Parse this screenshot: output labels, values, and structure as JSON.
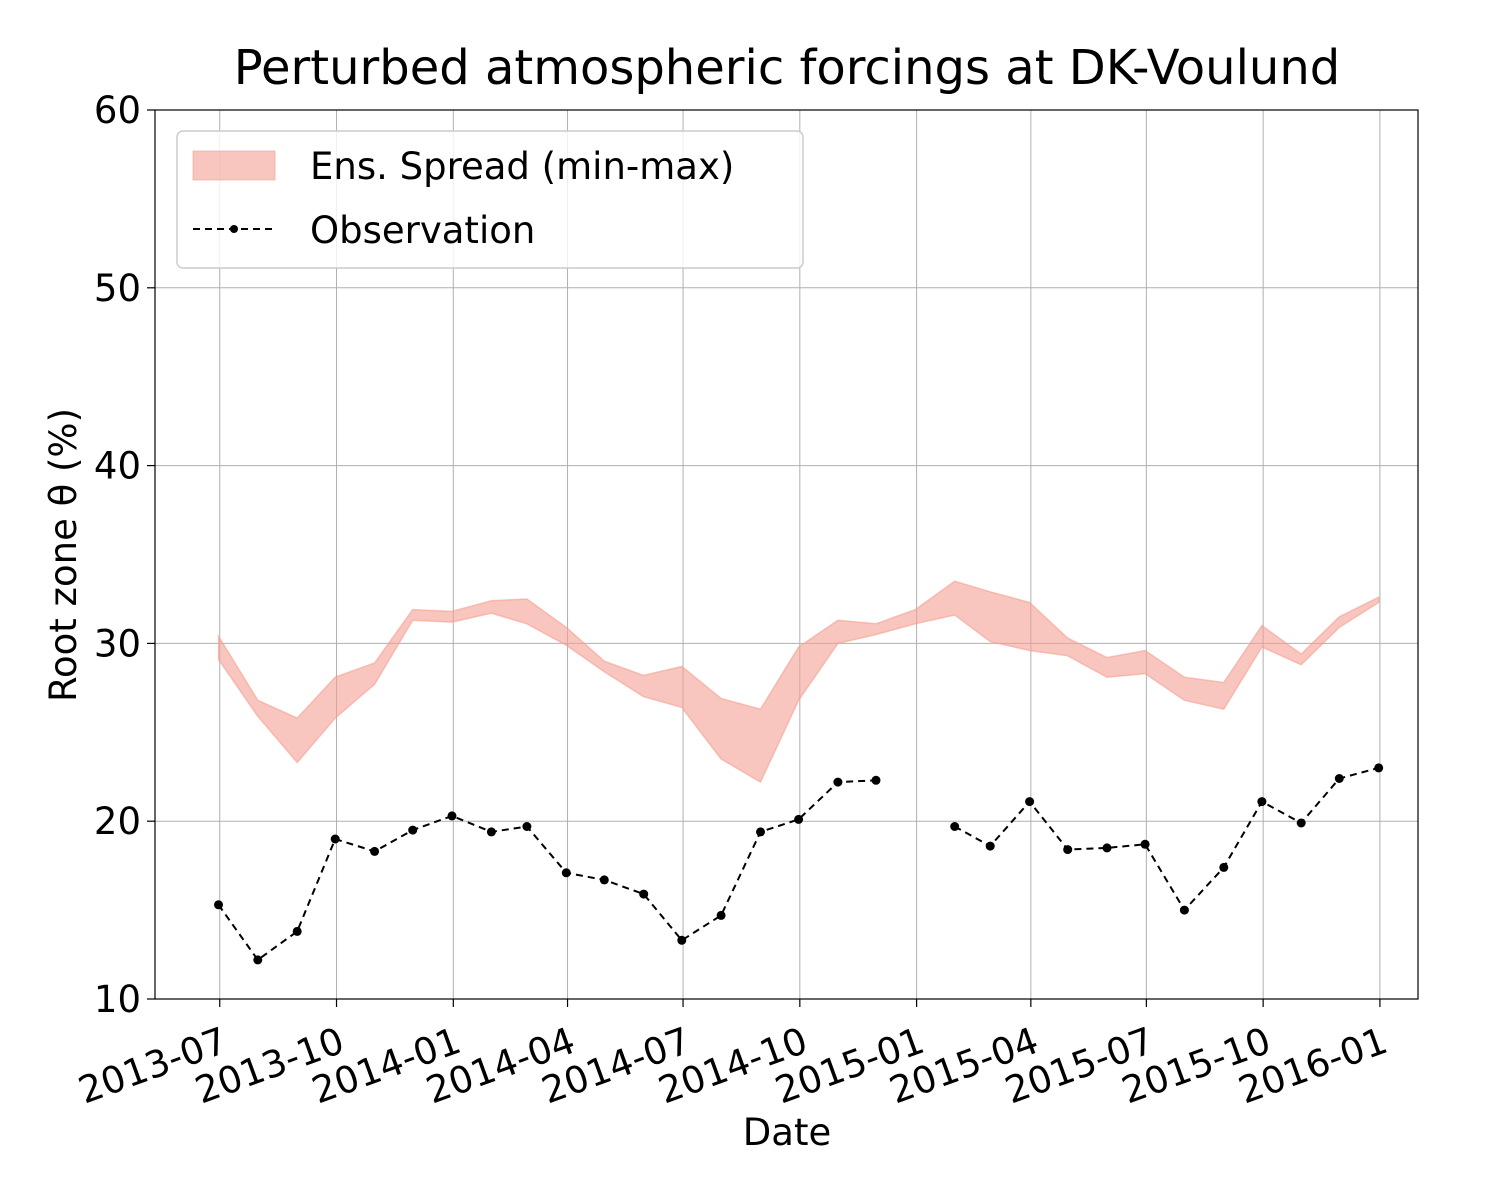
{
  "chart_data": {
    "type": "line",
    "title": "Perturbed atmospheric forcings at DK-Voulund",
    "xlabel": "Date",
    "ylabel": "Root zone θ  (%)",
    "ylim": [
      10,
      60
    ],
    "yticks": [
      10,
      20,
      30,
      40,
      50,
      60
    ],
    "xticks": [
      "2013-07",
      "2013-10",
      "2014-01",
      "2014-04",
      "2014-07",
      "2014-10",
      "2015-01",
      "2015-04",
      "2015-07",
      "2015-10",
      "2016-01"
    ],
    "xlim": [
      "2013-05-11",
      "2016-01-31"
    ],
    "grid": true,
    "legend_position": "top-left",
    "colors": {
      "spread": "#f4a093",
      "observation": "#000000"
    },
    "series": [
      {
        "name": "Ens. Spread (min-max)",
        "kind": "band",
        "points": [
          {
            "date": "2013-06-30",
            "min": 29.1,
            "max": 30.4
          },
          {
            "date": "2013-07-31",
            "min": 25.9,
            "max": 26.8
          },
          {
            "date": "2013-08-31",
            "min": 23.3,
            "max": 25.8
          },
          {
            "date": "2013-09-30",
            "min": 25.8,
            "max": 28.1
          },
          {
            "date": "2013-10-31",
            "min": 27.7,
            "max": 28.9
          },
          {
            "date": "2013-11-30",
            "min": 31.3,
            "max": 31.9
          },
          {
            "date": "2013-12-31",
            "min": 31.2,
            "max": 31.8
          },
          {
            "date": "2014-01-31",
            "min": 31.7,
            "max": 32.4
          },
          {
            "date": "2014-02-28",
            "min": 31.1,
            "max": 32.5
          },
          {
            "date": "2014-03-31",
            "min": 29.9,
            "max": 30.9
          },
          {
            "date": "2014-04-30",
            "min": 28.4,
            "max": 29.0
          },
          {
            "date": "2014-05-31",
            "min": 27.0,
            "max": 28.2
          },
          {
            "date": "2014-06-30",
            "min": 26.4,
            "max": 28.7
          },
          {
            "date": "2014-07-31",
            "min": 23.5,
            "max": 26.9
          },
          {
            "date": "2014-08-31",
            "min": 22.2,
            "max": 26.3
          },
          {
            "date": "2014-09-30",
            "min": 26.8,
            "max": 29.8
          },
          {
            "date": "2014-10-31",
            "min": 30.0,
            "max": 31.3
          },
          {
            "date": "2014-11-30",
            "min": 30.5,
            "max": 31.1
          },
          {
            "date": "2014-12-31",
            "min": 31.1,
            "max": 31.9
          },
          {
            "date": "2015-01-31",
            "min": 31.6,
            "max": 33.5
          },
          {
            "date": "2015-02-28",
            "min": 30.1,
            "max": 32.9
          },
          {
            "date": "2015-03-31",
            "min": 29.6,
            "max": 32.3
          },
          {
            "date": "2015-04-30",
            "min": 29.3,
            "max": 30.3
          },
          {
            "date": "2015-05-31",
            "min": 28.1,
            "max": 29.2
          },
          {
            "date": "2015-06-30",
            "min": 28.3,
            "max": 29.6
          },
          {
            "date": "2015-07-31",
            "min": 26.8,
            "max": 28.1
          },
          {
            "date": "2015-08-31",
            "min": 26.3,
            "max": 27.8
          },
          {
            "date": "2015-09-30",
            "min": 29.8,
            "max": 31.0
          },
          {
            "date": "2015-10-31",
            "min": 28.8,
            "max": 29.4
          },
          {
            "date": "2015-11-30",
            "min": 30.9,
            "max": 31.5
          },
          {
            "date": "2015-12-31",
            "min": 32.3,
            "max": 32.6
          }
        ]
      },
      {
        "name": "Observation",
        "kind": "line",
        "style": "dashed-markers",
        "points": [
          {
            "date": "2013-06-30",
            "y": 15.3
          },
          {
            "date": "2013-07-31",
            "y": 12.2
          },
          {
            "date": "2013-08-31",
            "y": 13.8
          },
          {
            "date": "2013-09-30",
            "y": 19.0
          },
          {
            "date": "2013-10-31",
            "y": 18.3
          },
          {
            "date": "2013-11-30",
            "y": 19.5
          },
          {
            "date": "2013-12-31",
            "y": 20.3
          },
          {
            "date": "2014-01-31",
            "y": 19.4
          },
          {
            "date": "2014-02-28",
            "y": 19.7
          },
          {
            "date": "2014-03-31",
            "y": 17.1
          },
          {
            "date": "2014-04-30",
            "y": 16.7
          },
          {
            "date": "2014-05-31",
            "y": 15.9
          },
          {
            "date": "2014-06-30",
            "y": 13.3
          },
          {
            "date": "2014-07-31",
            "y": 14.7
          },
          {
            "date": "2014-08-31",
            "y": 19.4
          },
          {
            "date": "2014-09-30",
            "y": 20.1
          },
          {
            "date": "2014-10-31",
            "y": 22.2
          },
          {
            "date": "2014-11-30",
            "y": 22.3
          },
          {
            "date": "2014-12-31",
            "y": null
          },
          {
            "date": "2015-01-31",
            "y": 19.7
          },
          {
            "date": "2015-02-28",
            "y": 18.6
          },
          {
            "date": "2015-03-31",
            "y": 21.1
          },
          {
            "date": "2015-04-30",
            "y": 18.4
          },
          {
            "date": "2015-05-31",
            "y": 18.5
          },
          {
            "date": "2015-06-30",
            "y": 18.7
          },
          {
            "date": "2015-07-31",
            "y": 15.0
          },
          {
            "date": "2015-08-31",
            "y": 17.4
          },
          {
            "date": "2015-09-30",
            "y": 21.1
          },
          {
            "date": "2015-10-31",
            "y": 19.9
          },
          {
            "date": "2015-11-30",
            "y": 22.4
          },
          {
            "date": "2015-12-31",
            "y": 23.0
          }
        ]
      }
    ]
  }
}
